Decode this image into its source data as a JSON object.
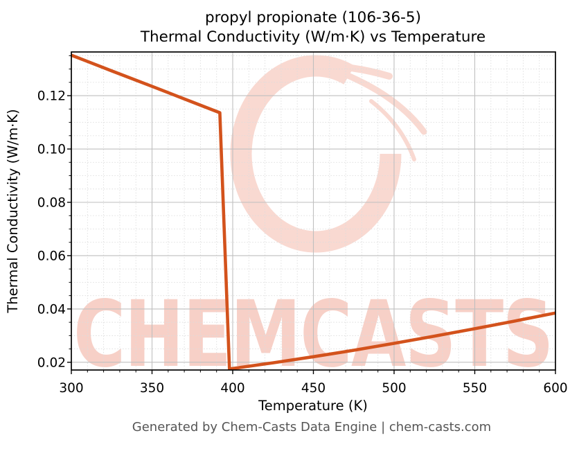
{
  "title": {
    "line1": "propyl propionate (106-36-5)",
    "line2": "Thermal Conductivity (W/m·K) vs Temperature"
  },
  "axes": {
    "xlabel": "Temperature (K)",
    "ylabel": "Thermal Conductivity (W/m·K)"
  },
  "footer": {
    "text": "Generated by Chem-Casts Data Engine | chem-casts.com",
    "color": "#555555"
  },
  "watermark": {
    "text": "CHEMCASTS",
    "logo": "chemcasts-c-ring",
    "ring_color": "#f9d9d1",
    "text_color": "#f7d0c7"
  },
  "theme": {
    "line_color": "#d3521c",
    "grid_major_color": "#bfbfbf",
    "grid_minor_color": "#dcdcdc",
    "spine_color": "#000000",
    "background": "#ffffff"
  },
  "chart_data": {
    "type": "line",
    "title": "propyl propionate (106-36-5) Thermal Conductivity (W/m·K) vs Temperature",
    "xlabel": "Temperature (K)",
    "ylabel": "Thermal Conductivity (W/m·K)",
    "xlim": [
      300,
      600
    ],
    "ylim": [
      0.0171,
      0.1364
    ],
    "x_major_ticks": [
      300,
      350,
      400,
      450,
      500,
      550,
      600
    ],
    "y_major_ticks": [
      0.02,
      0.04,
      0.06,
      0.08,
      0.1,
      0.12
    ],
    "x_minor_step": 10,
    "y_minor_step": 0.005,
    "grid": "major-solid, minor-dashed",
    "legend": false,
    "series": [
      {
        "name": "thermal-conductivity",
        "color": "#d3521c",
        "points": [
          [
            300,
            0.1352
          ],
          [
            325,
            0.1293
          ],
          [
            350,
            0.1235
          ],
          [
            375,
            0.1176
          ],
          [
            392,
            0.1136
          ],
          [
            398,
            0.0175
          ],
          [
            425,
            0.0198
          ],
          [
            450,
            0.0221
          ],
          [
            475,
            0.0245
          ],
          [
            500,
            0.0271
          ],
          [
            525,
            0.0298
          ],
          [
            550,
            0.0326
          ],
          [
            575,
            0.0355
          ],
          [
            600,
            0.0385
          ]
        ]
      }
    ]
  }
}
